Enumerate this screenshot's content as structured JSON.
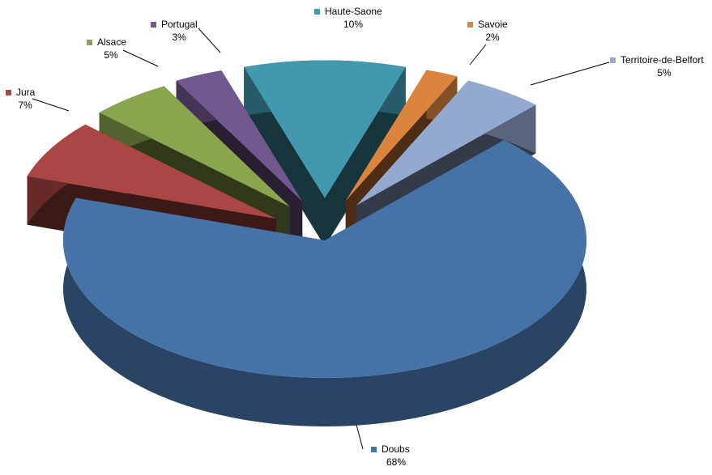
{
  "chart_data": {
    "type": "pie",
    "categories": [
      "Haute-Saone",
      "Savoie",
      "Territoire-de-Belfort",
      "Doubs",
      "Jura",
      "Alsace",
      "Portugal"
    ],
    "values": [
      10,
      2,
      5,
      68,
      7,
      5,
      3
    ],
    "value_labels": [
      "10%",
      "2%",
      "5%",
      "68%",
      "7%",
      "5%",
      "3%"
    ],
    "colors": [
      "#4198af",
      "#db843d",
      "#93a9cf",
      "#4572a7",
      "#aa4643",
      "#89a54e",
      "#71588f"
    ]
  }
}
